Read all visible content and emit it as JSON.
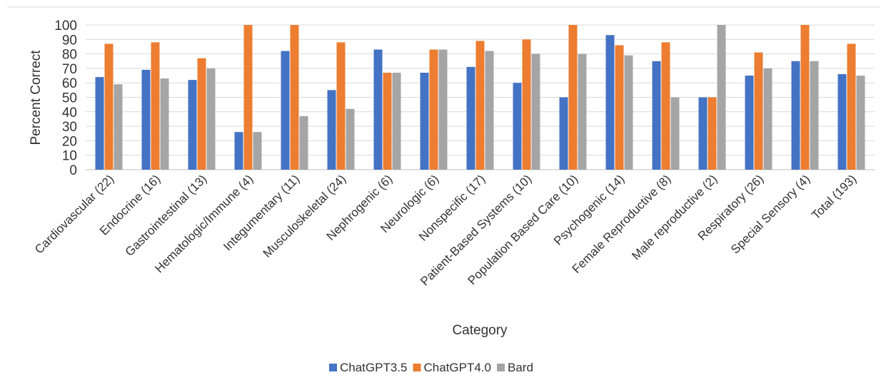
{
  "chart_data": {
    "type": "bar",
    "title": "",
    "xlabel": "Category",
    "ylabel": "Percent Correct",
    "ylim": [
      0,
      100
    ],
    "yticks": [
      0,
      10,
      20,
      30,
      40,
      50,
      60,
      70,
      80,
      90,
      100
    ],
    "grid": true,
    "legend_position": "bottom",
    "categories": [
      "Cardiovascular (22)",
      "Endocrine (16)",
      "Gastrointestinal (13)",
      "Hematologic/Immune (4)",
      "Integumentary (11)",
      "Musculoskeletal (24)",
      "Nephrogenic (6)",
      "Neurologic (6)",
      "Nonspecific (17)",
      "Patient-Based Systems (10)",
      "Population Based Care (10)",
      "Psychogenic (14)",
      "Female Reproductive (8)",
      "Male reproductive (2)",
      "Respiratory (26)",
      "Special Sensory (4)",
      "Total (193)"
    ],
    "series": [
      {
        "name": "ChatGPT3.5",
        "color": "#4472c4",
        "values": [
          64,
          69,
          62,
          26,
          82,
          55,
          83,
          67,
          71,
          60,
          50,
          93,
          75,
          50,
          65,
          75,
          66
        ]
      },
      {
        "name": "ChatGPT4.0",
        "color": "#ed7d31",
        "values": [
          87,
          88,
          77,
          100,
          100,
          88,
          67,
          83,
          89,
          90,
          100,
          86,
          88,
          50,
          81,
          100,
          87
        ]
      },
      {
        "name": "Bard",
        "color": "#a5a5a5",
        "values": [
          59,
          63,
          70,
          26,
          37,
          42,
          67,
          83,
          82,
          80,
          80,
          79,
          50,
          100,
          70,
          75,
          65
        ]
      }
    ]
  }
}
